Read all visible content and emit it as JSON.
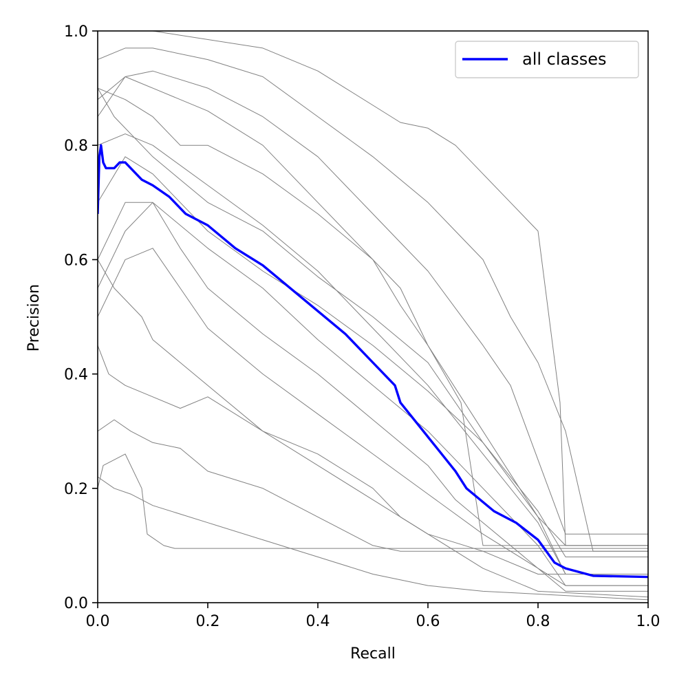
{
  "chart_data": {
    "type": "line",
    "title": "",
    "xlabel": "Recall",
    "ylabel": "Precision",
    "xlim": [
      0.0,
      1.0
    ],
    "ylim": [
      0.0,
      1.0
    ],
    "xticks": [
      "0.0",
      "0.2",
      "0.4",
      "0.6",
      "0.8",
      "1.0"
    ],
    "yticks": [
      "0.0",
      "0.2",
      "0.4",
      "0.6",
      "0.8",
      "1.0"
    ],
    "grid": false,
    "legend": {
      "placement": "top-right",
      "entries": [
        "all classes"
      ]
    },
    "colors": {
      "main": "#0000ff",
      "class_curves": "#808080"
    },
    "series": [
      {
        "name": "all classes",
        "color": "#0000ff",
        "x": [
          0.0,
          0.003,
          0.006,
          0.01,
          0.015,
          0.02,
          0.03,
          0.04,
          0.05,
          0.06,
          0.08,
          0.1,
          0.13,
          0.16,
          0.2,
          0.25,
          0.3,
          0.35,
          0.4,
          0.45,
          0.5,
          0.54,
          0.55,
          0.6,
          0.65,
          0.67,
          0.72,
          0.76,
          0.8,
          0.83,
          0.85,
          0.9,
          1.0
        ],
        "y": [
          0.68,
          0.78,
          0.8,
          0.77,
          0.76,
          0.76,
          0.76,
          0.77,
          0.77,
          0.76,
          0.74,
          0.73,
          0.71,
          0.68,
          0.66,
          0.62,
          0.59,
          0.55,
          0.51,
          0.47,
          0.42,
          0.38,
          0.35,
          0.29,
          0.23,
          0.2,
          0.16,
          0.14,
          0.11,
          0.07,
          0.06,
          0.047,
          0.045
        ]
      },
      {
        "x": [
          0.0,
          0.02,
          0.1,
          0.3,
          0.4,
          0.5,
          0.55,
          0.6,
          0.65,
          0.7,
          0.75,
          0.8,
          0.84,
          0.85,
          1.0
        ],
        "y": [
          1.0,
          1.0,
          1.0,
          0.97,
          0.93,
          0.87,
          0.84,
          0.83,
          0.8,
          0.75,
          0.7,
          0.65,
          0.35,
          0.1,
          0.1
        ]
      },
      {
        "x": [
          0.0,
          0.05,
          0.1,
          0.2,
          0.3,
          0.4,
          0.5,
          0.6,
          0.65,
          0.7,
          0.75,
          0.8,
          0.85,
          0.9,
          1.0
        ],
        "y": [
          0.95,
          0.97,
          0.97,
          0.95,
          0.92,
          0.85,
          0.78,
          0.7,
          0.65,
          0.6,
          0.5,
          0.42,
          0.3,
          0.09,
          0.09
        ]
      },
      {
        "x": [
          0.0,
          0.05,
          0.1,
          0.2,
          0.3,
          0.4,
          0.5,
          0.55,
          0.6,
          0.7,
          0.75,
          0.8,
          0.85,
          1.0
        ],
        "y": [
          0.88,
          0.92,
          0.93,
          0.9,
          0.85,
          0.78,
          0.68,
          0.63,
          0.58,
          0.45,
          0.38,
          0.25,
          0.12,
          0.12
        ]
      },
      {
        "x": [
          0.0,
          0.05,
          0.1,
          0.2,
          0.3,
          0.35,
          0.4,
          0.5,
          0.55,
          0.6,
          0.7,
          0.8,
          0.85,
          1.0
        ],
        "y": [
          0.85,
          0.92,
          0.9,
          0.86,
          0.8,
          0.75,
          0.7,
          0.6,
          0.52,
          0.45,
          0.3,
          0.15,
          0.1,
          0.1
        ]
      },
      {
        "x": [
          0.0,
          0.05,
          0.1,
          0.15,
          0.2,
          0.3,
          0.4,
          0.5,
          0.55,
          0.6,
          0.66,
          0.7,
          1.0
        ],
        "y": [
          0.9,
          0.88,
          0.85,
          0.8,
          0.8,
          0.75,
          0.68,
          0.6,
          0.55,
          0.45,
          0.35,
          0.1,
          0.1
        ]
      },
      {
        "x": [
          0.0,
          0.03,
          0.1,
          0.15,
          0.2,
          0.3,
          0.4,
          0.5,
          0.6,
          0.7,
          0.8,
          0.85,
          1.0
        ],
        "y": [
          0.9,
          0.85,
          0.78,
          0.74,
          0.7,
          0.65,
          0.57,
          0.5,
          0.42,
          0.28,
          0.15,
          0.05,
          0.05
        ]
      },
      {
        "x": [
          0.0,
          0.05,
          0.1,
          0.2,
          0.3,
          0.4,
          0.5,
          0.6,
          0.7,
          0.8,
          0.85,
          1.0
        ],
        "y": [
          0.8,
          0.82,
          0.8,
          0.73,
          0.66,
          0.58,
          0.48,
          0.38,
          0.26,
          0.14,
          0.05,
          0.05
        ]
      },
      {
        "x": [
          0.0,
          0.05,
          0.1,
          0.2,
          0.3,
          0.4,
          0.5,
          0.6,
          0.7,
          0.8,
          0.85,
          1.0
        ],
        "y": [
          0.7,
          0.78,
          0.75,
          0.65,
          0.58,
          0.52,
          0.45,
          0.37,
          0.28,
          0.16,
          0.08,
          0.08
        ]
      },
      {
        "x": [
          0.0,
          0.05,
          0.1,
          0.2,
          0.3,
          0.4,
          0.5,
          0.6,
          0.7,
          0.8,
          0.85,
          1.0
        ],
        "y": [
          0.6,
          0.7,
          0.7,
          0.62,
          0.55,
          0.46,
          0.38,
          0.3,
          0.2,
          0.1,
          0.03,
          0.03
        ]
      },
      {
        "x": [
          0.0,
          0.05,
          0.1,
          0.15,
          0.2,
          0.3,
          0.4,
          0.5,
          0.6,
          0.65,
          0.7,
          0.8,
          0.85,
          1.0
        ],
        "y": [
          0.55,
          0.65,
          0.7,
          0.62,
          0.55,
          0.47,
          0.4,
          0.32,
          0.24,
          0.18,
          0.14,
          0.06,
          0.03,
          0.03
        ]
      },
      {
        "x": [
          0.0,
          0.05,
          0.1,
          0.15,
          0.2,
          0.3,
          0.4,
          0.5,
          0.6,
          0.7,
          0.8,
          0.85,
          1.0
        ],
        "y": [
          0.5,
          0.6,
          0.62,
          0.55,
          0.48,
          0.4,
          0.33,
          0.26,
          0.19,
          0.12,
          0.06,
          0.02,
          0.02
        ]
      },
      {
        "x": [
          0.0,
          0.03,
          0.08,
          0.1,
          0.15,
          0.2,
          0.3,
          0.4,
          0.5,
          0.55,
          0.6,
          0.7,
          0.8,
          1.0
        ],
        "y": [
          0.6,
          0.55,
          0.5,
          0.46,
          0.42,
          0.38,
          0.3,
          0.26,
          0.2,
          0.15,
          0.12,
          0.09,
          0.05,
          0.05
        ]
      },
      {
        "x": [
          0.0,
          0.02,
          0.05,
          0.1,
          0.15,
          0.2,
          0.3,
          0.4,
          0.5,
          0.6,
          0.7,
          0.8,
          1.0
        ],
        "y": [
          0.45,
          0.4,
          0.38,
          0.36,
          0.34,
          0.36,
          0.3,
          0.24,
          0.18,
          0.12,
          0.06,
          0.02,
          0.01
        ]
      },
      {
        "x": [
          0.0,
          0.03,
          0.06,
          0.1,
          0.15,
          0.2,
          0.3,
          0.4,
          0.5,
          0.55,
          1.0
        ],
        "y": [
          0.3,
          0.32,
          0.3,
          0.28,
          0.27,
          0.23,
          0.2,
          0.15,
          0.1,
          0.09,
          0.09
        ]
      },
      {
        "x": [
          0.0,
          0.01,
          0.03,
          0.05,
          0.08,
          0.09,
          0.12,
          0.14,
          1.0
        ],
        "y": [
          0.2,
          0.24,
          0.25,
          0.26,
          0.2,
          0.12,
          0.1,
          0.095,
          0.095
        ]
      },
      {
        "x": [
          0.0,
          0.03,
          0.06,
          0.1,
          0.2,
          0.3,
          0.4,
          0.5,
          0.6,
          0.7,
          0.8,
          0.9,
          1.0
        ],
        "y": [
          0.22,
          0.2,
          0.19,
          0.17,
          0.14,
          0.11,
          0.08,
          0.05,
          0.03,
          0.02,
          0.015,
          0.01,
          0.005
        ]
      }
    ]
  }
}
